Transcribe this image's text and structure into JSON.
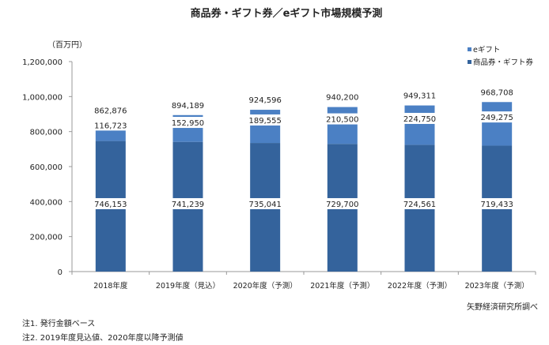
{
  "chart_data": {
    "type": "bar",
    "stacked": true,
    "title": "商品券・ギフト券／eギフト市場規模予測",
    "ylabel": "（百万円）",
    "ylim": [
      0,
      1200000
    ],
    "yticks": [
      0,
      200000,
      400000,
      600000,
      800000,
      1000000,
      1200000
    ],
    "ytick_labels": [
      "0",
      "200,000",
      "400,000",
      "600,000",
      "800,000",
      "1,000,000",
      "1,200,000"
    ],
    "categories": [
      "2018年度",
      "2019年度（見込）",
      "2020年度（予測）",
      "2021年度（予測）",
      "2022年度（予測）",
      "2023年度（予測）"
    ],
    "series": [
      {
        "name": "商品券・ギフト券",
        "color": "#34639c",
        "values": [
          746153,
          741239,
          735041,
          729700,
          724561,
          719433
        ],
        "labels": [
          "746,153",
          "741,239",
          "735,041",
          "729,700",
          "724,561",
          "719,433"
        ]
      },
      {
        "name": "eギフト",
        "color": "#4b80c4",
        "values": [
          116723,
          152950,
          189555,
          210500,
          224750,
          249275
        ],
        "labels": [
          "116,723",
          "152,950",
          "189,555",
          "210,500",
          "224,750",
          "249,275"
        ]
      }
    ],
    "totals": [
      862876,
      894189,
      924596,
      940200,
      949311,
      968708
    ],
    "total_labels": [
      "862,876",
      "894,189",
      "924,596",
      "940,200",
      "949,311",
      "968,708"
    ],
    "legend_position": "top-right",
    "grid": false
  },
  "source": "矢野経済研究所調べ",
  "notes": [
    "注1. 発行金額ベース",
    "注2. 2019年度見込値、2020年度以降予測値"
  ]
}
